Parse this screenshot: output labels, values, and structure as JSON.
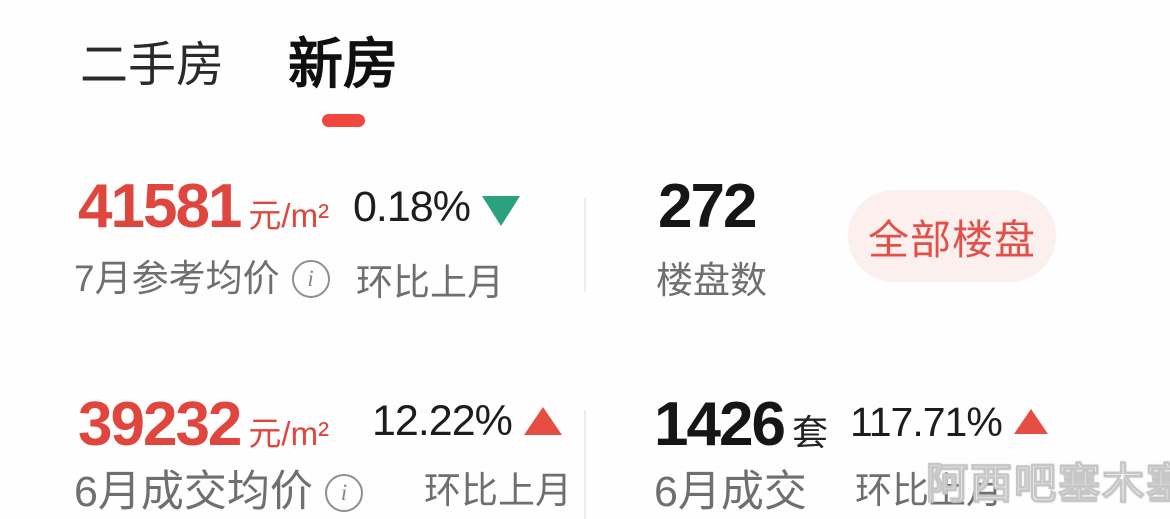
{
  "tabs": [
    {
      "label": "二手房",
      "active": false
    },
    {
      "label": "新房",
      "active": true
    }
  ],
  "row1": {
    "price": {
      "value": "41581",
      "unit": "元/m²",
      "label": "7月参考均价"
    },
    "change": {
      "value": "0.18%",
      "direction": "down",
      "label": "环比上月"
    },
    "buildings": {
      "value": "272",
      "label": "楼盘数"
    },
    "all_buildings_button": "全部楼盘"
  },
  "row2": {
    "price": {
      "value": "39232",
      "unit": "元/m²",
      "label": "6月成交均价"
    },
    "change": {
      "value": "12.22%",
      "direction": "up",
      "label": "环比上月"
    },
    "deals": {
      "value": "1426",
      "unit": "套",
      "label": "6月成交"
    },
    "deals_change": {
      "value": "117.71%",
      "direction": "up",
      "label": "环比上月"
    }
  },
  "icons": {
    "info": "i"
  },
  "watermark": "阿西吧塞木塞",
  "colors": {
    "accent_red": "#df463d",
    "up_red": "#e64e43",
    "down_green": "#2ba180",
    "tab_indicator": "#f2473f",
    "pill_bg": "#fcf0ee",
    "pill_text": "#e25049",
    "label_gray": "#6f6f6f",
    "divider": "#ededed"
  }
}
